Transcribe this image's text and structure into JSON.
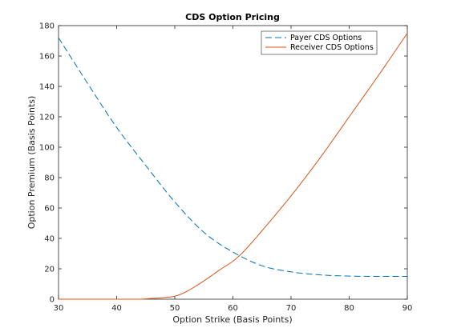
{
  "chart_data": {
    "type": "line",
    "title": "CDS Option Pricing",
    "xlabel": "Option Strike (Basis Points)",
    "ylabel": "Option Premium (Basis Points)",
    "xlim": [
      30,
      90
    ],
    "ylim": [
      0,
      180
    ],
    "xticks": [
      30,
      40,
      50,
      60,
      70,
      80,
      90
    ],
    "yticks": [
      0,
      20,
      40,
      60,
      80,
      100,
      120,
      140,
      160,
      180
    ],
    "grid": false,
    "legend_position": "top-right",
    "series": [
      {
        "name": "Payer CDS Options",
        "style": "dashed",
        "color": "#0072BD",
        "x": [
          30,
          35,
          40,
          45,
          50,
          55,
          60,
          65,
          70,
          75,
          80,
          85,
          90
        ],
        "y": [
          172,
          142,
          113,
          88,
          64,
          44,
          31,
          22,
          18,
          16,
          15.2,
          15,
          15
        ]
      },
      {
        "name": "Receiver CDS Options",
        "style": "solid",
        "color": "#D95319",
        "x": [
          30,
          40,
          44,
          46,
          48,
          50,
          52,
          55,
          58,
          60,
          62,
          65,
          70,
          75,
          80,
          85,
          90
        ],
        "y": [
          0,
          0,
          0,
          0.5,
          1,
          2,
          5,
          12,
          20,
          25,
          32,
          45,
          68,
          93,
          120,
          147,
          175
        ]
      }
    ]
  }
}
